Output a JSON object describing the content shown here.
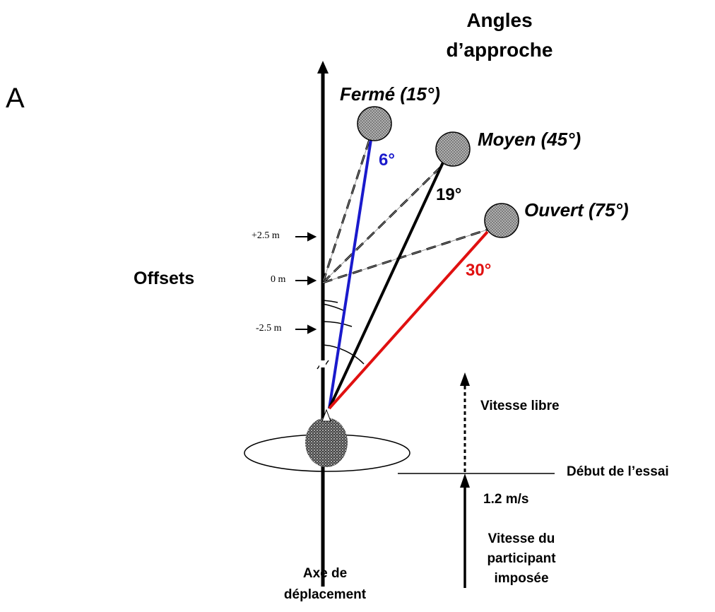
{
  "panel_letter": "A",
  "approach_header": [
    "Angles",
    "d’approche"
  ],
  "targets": [
    {
      "label": "Fermé (15°)",
      "deviation": "6°",
      "deviation_color": "#1a1acc"
    },
    {
      "label": "Moyen (45°)",
      "deviation": "19°",
      "deviation_color": "#000000"
    },
    {
      "label": "Ouvert (75°)",
      "deviation": "30°",
      "deviation_color": "#e01010"
    }
  ],
  "offsets_title": "Offsets",
  "offset_ticks": [
    "+2.5 m",
    "0 m",
    "-2.5 m"
  ],
  "speed_labels": {
    "free": "Vitesse libre",
    "trial_start": "Début de l’essai",
    "speed_value": "1.2 m/s",
    "imposed": [
      "Vitesse du",
      "participant",
      "imposée"
    ]
  },
  "axis_label": [
    "Axe de",
    "déplacement"
  ],
  "colors": {
    "blue_path": "#1a1acc",
    "red_path": "#e01010",
    "target_fill": "#9a9a9a",
    "walker_fill": "#555555"
  }
}
